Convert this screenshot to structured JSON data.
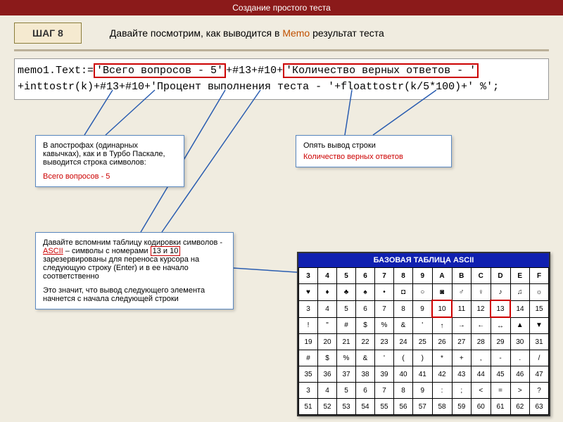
{
  "header": {
    "title": "Создание простого теста"
  },
  "step": {
    "label": "ШАГ 8",
    "text_before": "Давайте посмотрим, как выводится в ",
    "memo_word": "Memo",
    "text_after": " результат теста"
  },
  "code": {
    "line1_a": "memo1.Text:=",
    "line1_box1": "'Всего вопросов - 5'",
    "line1_b": "+#13+#10+",
    "line1_box2": "'Количество верных ответов - '",
    "line2": "+inttostr(k)+#13+#10+'Процент выполнения теста - '+floattostr(k/5*100)+' %';"
  },
  "box_left": {
    "p1": "В апострофах (одинарных кавычках), как и в Турбо Паскале, выводится строка символов:",
    "red": "Всего вопросов - 5"
  },
  "box_right": {
    "p1": "Опять вывод строки",
    "red": "Количество верных ответов"
  },
  "box_bottom": {
    "p1_a": "Давайте вспомним таблицу кодировки символов - ",
    "p1_ascii": "ASCII",
    "p1_b": " – символы с номерами ",
    "p1_nums": "13 и 10",
    "p1_c": " зарезервированы для переноса курсора на следующую строку (Enter) и в ее начало соответственно",
    "p2": "Это значит, что вывод следующего элемента начнется с начала следующей строки"
  },
  "ascii": {
    "title": "БАЗОВАЯ ТАБЛИЦА  ASCII",
    "headers": [
      "3",
      "4",
      "5",
      "6",
      "7",
      "8",
      "9",
      "A",
      "B",
      "C",
      "D",
      "E",
      "F"
    ],
    "rows": [
      [
        "♥",
        "♦",
        "♣",
        "♠",
        "•",
        "◘",
        "○",
        "◙",
        "♂",
        "♀",
        "♪",
        "♫",
        "☼"
      ],
      [
        "3",
        "4",
        "5",
        "6",
        "7",
        "8",
        "9",
        "10",
        "11",
        "12",
        "13",
        "14",
        "15"
      ],
      [
        "!",
        "\"",
        "#",
        "$",
        "%",
        "&",
        "'",
        "↑",
        "→",
        "←",
        "↔",
        "▲",
        "▼"
      ],
      [
        "19",
        "20",
        "21",
        "22",
        "23",
        "24",
        "25",
        "26",
        "27",
        "28",
        "29",
        "30",
        "31"
      ],
      [
        "#",
        "$",
        "%",
        "&",
        "'",
        "(",
        ")",
        "*",
        "+",
        ",",
        "-",
        ".",
        "/"
      ],
      [
        "35",
        "36",
        "37",
        "38",
        "39",
        "40",
        "41",
        "42",
        "43",
        "44",
        "45",
        "46",
        "47"
      ],
      [
        "3",
        "4",
        "5",
        "6",
        "7",
        "8",
        "9",
        ":",
        ";",
        "<",
        "=",
        ">",
        "?"
      ],
      [
        "51",
        "52",
        "53",
        "54",
        "55",
        "56",
        "57",
        "58",
        "59",
        "60",
        "61",
        "62",
        "63"
      ]
    ],
    "highlight_cells": [
      [
        1,
        7
      ],
      [
        1,
        10
      ]
    ],
    "colors": {
      "title_bg": "#1020b0",
      "title_fg": "#ffffff",
      "cell_border": "#000000",
      "highlight_border": "#cc0000"
    }
  },
  "line_color": "#2a5db0"
}
